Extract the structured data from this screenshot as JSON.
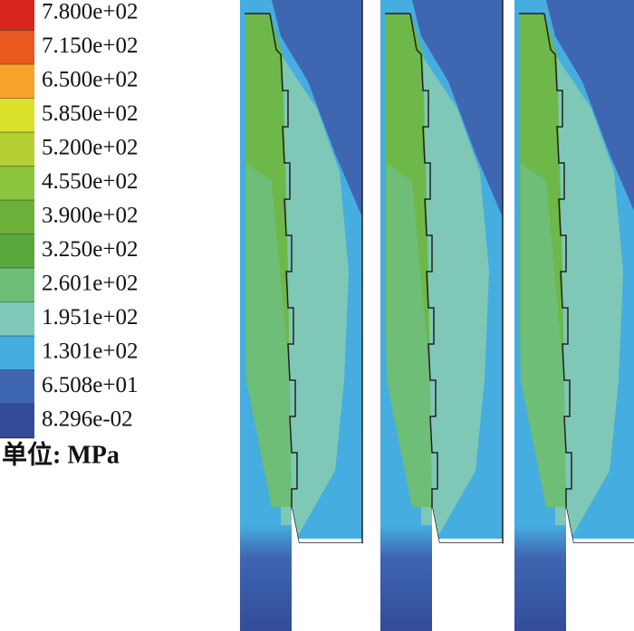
{
  "legend": {
    "levels": [
      {
        "label": "7.800e+02",
        "color": "#d7261e"
      },
      {
        "label": "7.150e+02",
        "color": "#e9581f"
      },
      {
        "label": "6.500e+02",
        "color": "#f6a329"
      },
      {
        "label": "5.850e+02",
        "color": "#dbe02b"
      },
      {
        "label": "5.200e+02",
        "color": "#b4d033"
      },
      {
        "label": "4.550e+02",
        "color": "#8cc43c"
      },
      {
        "label": "3.900e+02",
        "color": "#6cb03a"
      },
      {
        "label": "3.250e+02",
        "color": "#58a83e"
      },
      {
        "label": "2.601e+02",
        "color": "#6ebe78"
      },
      {
        "label": "1.951e+02",
        "color": "#7fc8b7"
      },
      {
        "label": "1.301e+02",
        "color": "#46ade0"
      },
      {
        "label": "6.508e+01",
        "color": "#3f66b1"
      },
      {
        "label": "8.296e-02",
        "color": "#324c99"
      }
    ],
    "unit": "单位: MPa"
  }
}
